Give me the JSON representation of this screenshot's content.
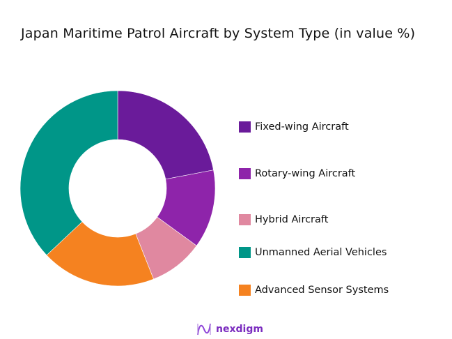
{
  "chart_data": {
    "type": "pie",
    "donut": true,
    "title": "Japan Maritime Patrol Aircraft by System Type (in value %)",
    "categories": [
      "Fixed-wing Aircraft",
      "Rotary-wing Aircraft",
      "Hybrid Aircraft",
      "Unmanned Aerial Vehicles",
      "Advanced Sensor Systems"
    ],
    "values": [
      22,
      13,
      9,
      37,
      19
    ],
    "slice_order_clockwise_from_top": [
      "Fixed-wing Aircraft",
      "Rotary-wing Aircraft",
      "Hybrid Aircraft",
      "Advanced Sensor Systems",
      "Unmanned Aerial Vehicles"
    ],
    "colors": [
      "#6a1b9a",
      "#8e24aa",
      "#e088a0",
      "#009688",
      "#f58220"
    ],
    "legend_position": "right"
  },
  "logo": {
    "text": "nexdigm",
    "color": "#7b2cbf"
  }
}
